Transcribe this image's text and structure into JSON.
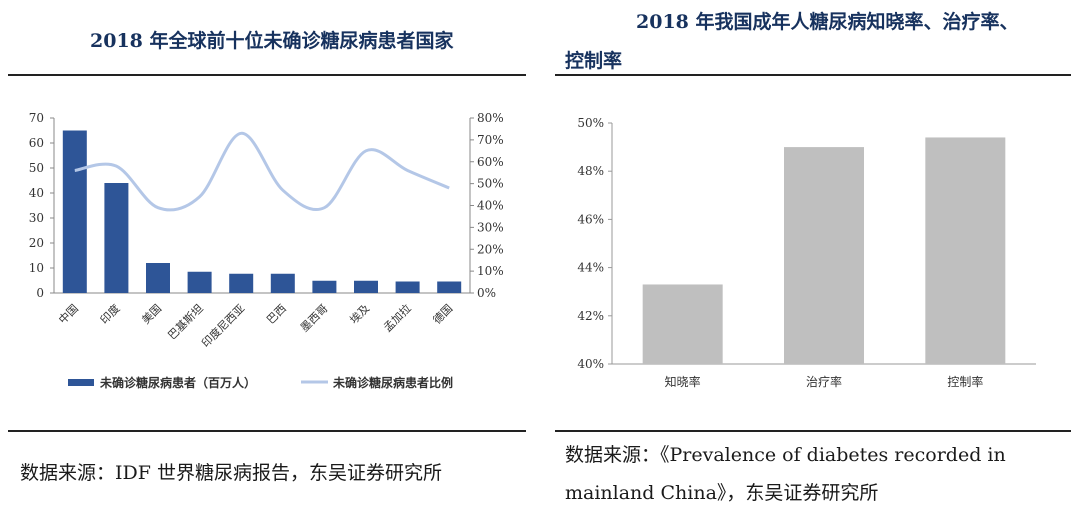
{
  "left": {
    "title": "2018 年全球前十位未确诊糖尿病患者国家",
    "source": "数据来源：IDF 世界糖尿病报告，东吴证券研究所"
  },
  "right": {
    "title_line1": "2018 年我国成年人糖尿病知晓率、治疗率、",
    "title_line2": "控制率",
    "source_line1": "数据来源：《Prevalence of diabetes recorded in",
    "source_line2": "mainland China》，东吴证券研究所"
  },
  "colors": {
    "bar_left": "#2e5597",
    "line_left": "#b4c7e7",
    "bar_right": "#bfbfbf"
  },
  "chart_data": [
    {
      "type": "bar",
      "categories": [
        "中国",
        "印度",
        "美国",
        "巴基斯坦",
        "印度尼西亚",
        "巴西",
        "墨西哥",
        "埃及",
        "孟加拉",
        "德国"
      ],
      "series": [
        {
          "name": "未确诊糖尿病患者（百万人）",
          "axis": "left",
          "type": "bar",
          "values": [
            65,
            44,
            12,
            8.5,
            7.7,
            7.7,
            4.9,
            4.9,
            4.6,
            4.6
          ]
        },
        {
          "name": "未确诊糖尿病患者比例",
          "axis": "right",
          "type": "line",
          "values": [
            56,
            58,
            39,
            44,
            73,
            47,
            39,
            65,
            56,
            48
          ]
        }
      ],
      "ylim": [
        0,
        70
      ],
      "yticks": [
        "0",
        "10",
        "20",
        "30",
        "40",
        "50",
        "60",
        "70"
      ],
      "y2lim": [
        0,
        80
      ],
      "y2ticks": [
        "0%",
        "10%",
        "20%",
        "30%",
        "40%",
        "50%",
        "60%",
        "70%",
        "80%"
      ],
      "legend": "bottom"
    },
    {
      "type": "bar",
      "categories": [
        "知晓率",
        "治疗率",
        "控制率"
      ],
      "values": [
        43.3,
        49.0,
        49.4
      ],
      "ylim": [
        40,
        50
      ],
      "yticks": [
        "40%",
        "42%",
        "44%",
        "46%",
        "48%",
        "50%"
      ]
    }
  ]
}
